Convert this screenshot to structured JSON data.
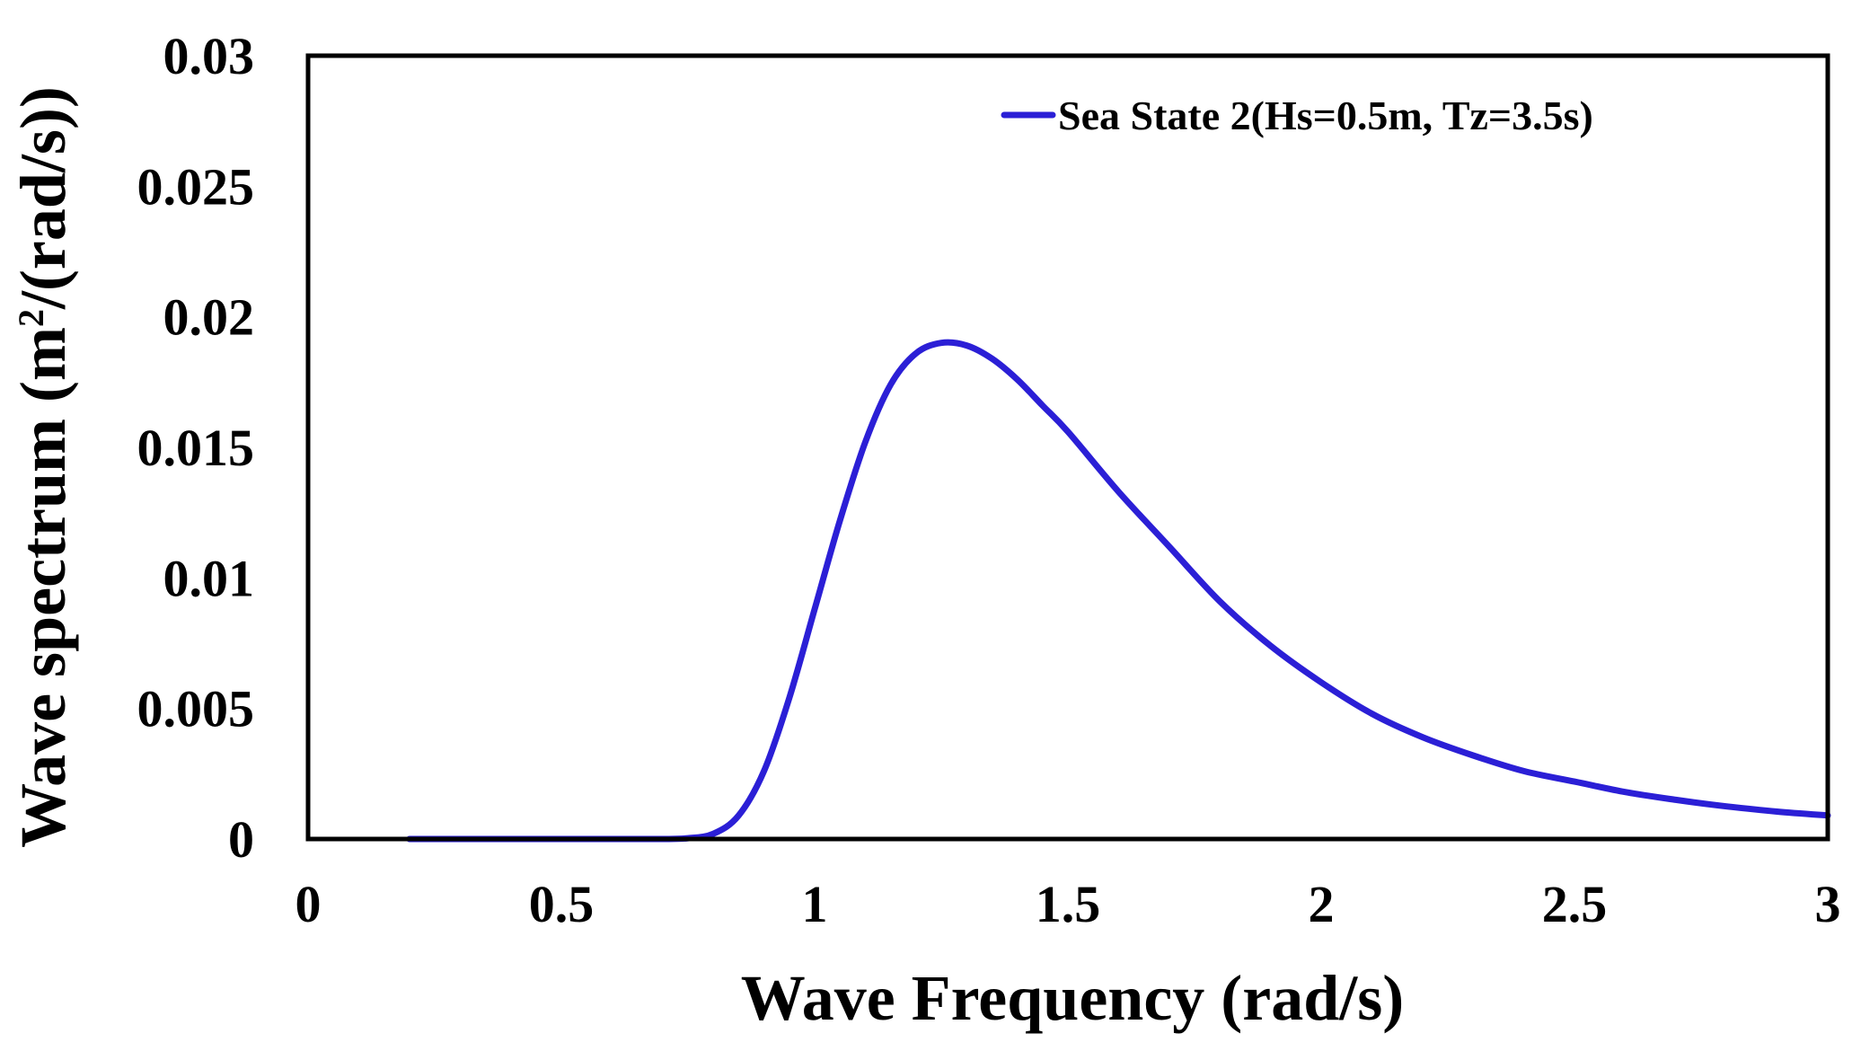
{
  "chart_data": {
    "type": "line",
    "title": "",
    "xlabel": "Wave Frequency (rad/s)",
    "ylabel_parts": {
      "before": "Wave spectrum (m",
      "superscript": "2",
      "after": "/(rad/s))"
    },
    "xlim": [
      0,
      3
    ],
    "ylim": [
      0,
      0.03
    ],
    "x_ticks": [
      "0",
      "0.5",
      "1",
      "1.5",
      "2",
      "2.5",
      "3"
    ],
    "y_ticks": [
      "0",
      "0.005",
      "0.01",
      "0.015",
      "0.02",
      "0.025",
      "0.03"
    ],
    "grid": false,
    "legend_position": "top-right",
    "series": [
      {
        "name": "Sea State 2(Hs=0.5m, Tz=3.5s)",
        "color": "#2B1FD6",
        "x": [
          0.2,
          0.4,
          0.6,
          0.7,
          0.75,
          0.8,
          0.85,
          0.9,
          0.95,
          1.0,
          1.05,
          1.1,
          1.15,
          1.2,
          1.25,
          1.3,
          1.35,
          1.4,
          1.45,
          1.5,
          1.6,
          1.7,
          1.8,
          1.9,
          2.0,
          2.1,
          2.2,
          2.3,
          2.4,
          2.5,
          2.6,
          2.7,
          2.8,
          2.9,
          3.0
        ],
        "y": [
          0.0,
          0.0,
          0.0,
          0.0,
          3e-05,
          0.0002,
          0.0009,
          0.0026,
          0.0054,
          0.0088,
          0.0122,
          0.0152,
          0.0174,
          0.0186,
          0.019,
          0.0189,
          0.0184,
          0.0176,
          0.0166,
          0.0156,
          0.0133,
          0.0112,
          0.0091,
          0.0074,
          0.006,
          0.0048,
          0.0039,
          0.0032,
          0.0026,
          0.0022,
          0.0018,
          0.0015,
          0.00125,
          0.00105,
          0.0009
        ]
      }
    ]
  }
}
